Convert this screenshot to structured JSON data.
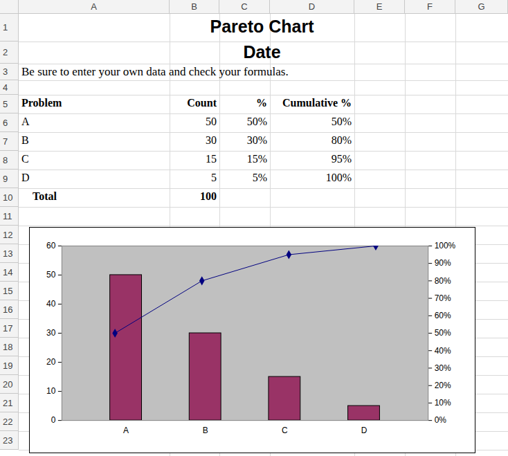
{
  "sheet": {
    "column_headers": [
      "A",
      "B",
      "C",
      "D",
      "E",
      "F",
      "G"
    ],
    "row_headers": [
      1,
      2,
      3,
      4,
      5,
      6,
      7,
      8,
      9,
      10,
      11,
      12,
      13,
      14,
      15,
      16,
      17,
      18,
      19,
      20,
      21,
      22,
      23
    ],
    "title": "Pareto Chart",
    "subtitle": "Date",
    "note": "Be sure to enter your own data and check your formulas.",
    "table": {
      "header": [
        "Problem",
        "Count",
        "%",
        "Cumulative %"
      ],
      "rows": [
        [
          "A",
          50,
          "50%",
          "50%"
        ],
        [
          "B",
          30,
          "30%",
          "80%"
        ],
        [
          "C",
          15,
          "15%",
          "95%"
        ],
        [
          "D",
          5,
          "5%",
          "100%"
        ]
      ],
      "total": [
        "Total",
        100
      ]
    }
  },
  "chart_data": {
    "type": "bar",
    "categories": [
      "A",
      "B",
      "C",
      "D"
    ],
    "series": [
      {
        "type": "bar",
        "color": "#993366",
        "values": [
          50,
          30,
          15,
          5
        ]
      },
      {
        "type": "line",
        "axis": "y2",
        "color": "#000080",
        "marker": "diamond",
        "values": [
          50,
          80,
          95,
          100
        ]
      }
    ],
    "ylim": [
      0,
      60
    ],
    "yticks": [
      0,
      10,
      20,
      30,
      40,
      50,
      60
    ],
    "y2lim": [
      0,
      100
    ],
    "y2ticks": [
      {
        "value": 0,
        "label": "0%"
      },
      {
        "value": 10,
        "label": "10%"
      },
      {
        "value": 20,
        "label": "20%"
      },
      {
        "value": 30,
        "label": "30%"
      },
      {
        "value": 40,
        "label": "40%"
      },
      {
        "value": 50,
        "label": "50%"
      },
      {
        "value": 60,
        "label": "60%"
      },
      {
        "value": 70,
        "label": "70%"
      },
      {
        "value": 80,
        "label": "80%"
      },
      {
        "value": 90,
        "label": "90%"
      },
      {
        "value": 100,
        "label": "100%"
      }
    ],
    "grid": false
  }
}
